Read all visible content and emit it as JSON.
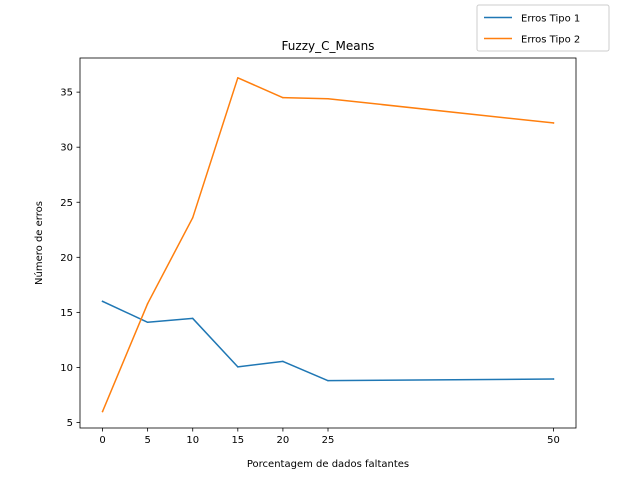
{
  "chart_data": {
    "type": "line",
    "title": "Fuzzy_C_Means",
    "xlabel": "Porcentagem de dados faltantes",
    "ylabel": "Número de erros",
    "x": [
      0,
      5,
      10,
      15,
      20,
      25,
      50
    ],
    "xticks": [
      0,
      5,
      10,
      15,
      20,
      25,
      50
    ],
    "xtick_labels": [
      "0",
      "5",
      "10",
      "15",
      "20",
      "25",
      "50"
    ],
    "yticks": [
      5,
      10,
      15,
      20,
      25,
      30,
      35
    ],
    "ytick_labels": [
      "5",
      "10",
      "15",
      "20",
      "25",
      "30",
      "35"
    ],
    "xlim": [
      -2.5,
      52.5
    ],
    "ylim": [
      4.5,
      38.1
    ],
    "grid": false,
    "legend_position": "top-right (outside axes)",
    "series": [
      {
        "name": "Erros Tipo 1",
        "color": "#1f77b4",
        "values": [
          16.0,
          14.1,
          14.45,
          10.05,
          10.55,
          8.8,
          8.95
        ]
      },
      {
        "name": "Erros Tipo 2",
        "color": "#ff7f0e",
        "values": [
          6.0,
          15.8,
          23.6,
          36.3,
          34.5,
          34.4,
          32.2
        ]
      }
    ]
  }
}
